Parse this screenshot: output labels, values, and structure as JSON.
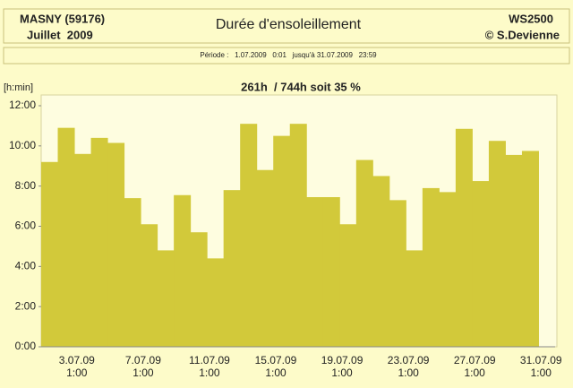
{
  "header": {
    "station": "MASNY (59176)",
    "month": "Juillet  2009",
    "title": "Durée d'ensoleillement",
    "device": "WS2500",
    "author": "© S.Devienne",
    "period": "Période :   1.07.2009   0:01   jusqu'à 31.07.2009   23:59"
  },
  "chart_data": {
    "type": "bar",
    "title": "261h  / 744h soit 35 %",
    "y_label": "[h:min]",
    "color": "#d2c93a",
    "categories": [
      null,
      null,
      "3.07.09",
      null,
      null,
      null,
      "7.07.09",
      null,
      null,
      null,
      "11.07.09",
      null,
      null,
      null,
      "15.07.09",
      null,
      null,
      null,
      "19.07.09",
      null,
      null,
      null,
      "23.07.09",
      null,
      null,
      null,
      "27.07.09",
      null,
      null,
      null,
      "31.07.09"
    ],
    "x_tick_time": "1:00",
    "values": [
      9.2,
      10.9,
      9.6,
      10.4,
      10.15,
      7.4,
      6.1,
      4.8,
      7.55,
      5.7,
      4.4,
      7.8,
      11.1,
      8.8,
      10.5,
      11.1,
      7.45,
      7.45,
      6.1,
      9.3,
      8.5,
      7.3,
      4.8,
      7.9,
      7.7,
      10.85,
      8.25,
      10.25,
      9.55,
      9.75,
      null
    ],
    "ylim": [
      0,
      12
    ],
    "yticks": [
      {
        "value": 0,
        "label": "0:00"
      },
      {
        "value": 2,
        "label": "2:00"
      },
      {
        "value": 4,
        "label": "4:00"
      },
      {
        "value": 6,
        "label": "6:00"
      },
      {
        "value": 8,
        "label": "8:00"
      },
      {
        "value": 10,
        "label": "10:00"
      },
      {
        "value": 12,
        "label": "12:00"
      }
    ]
  }
}
